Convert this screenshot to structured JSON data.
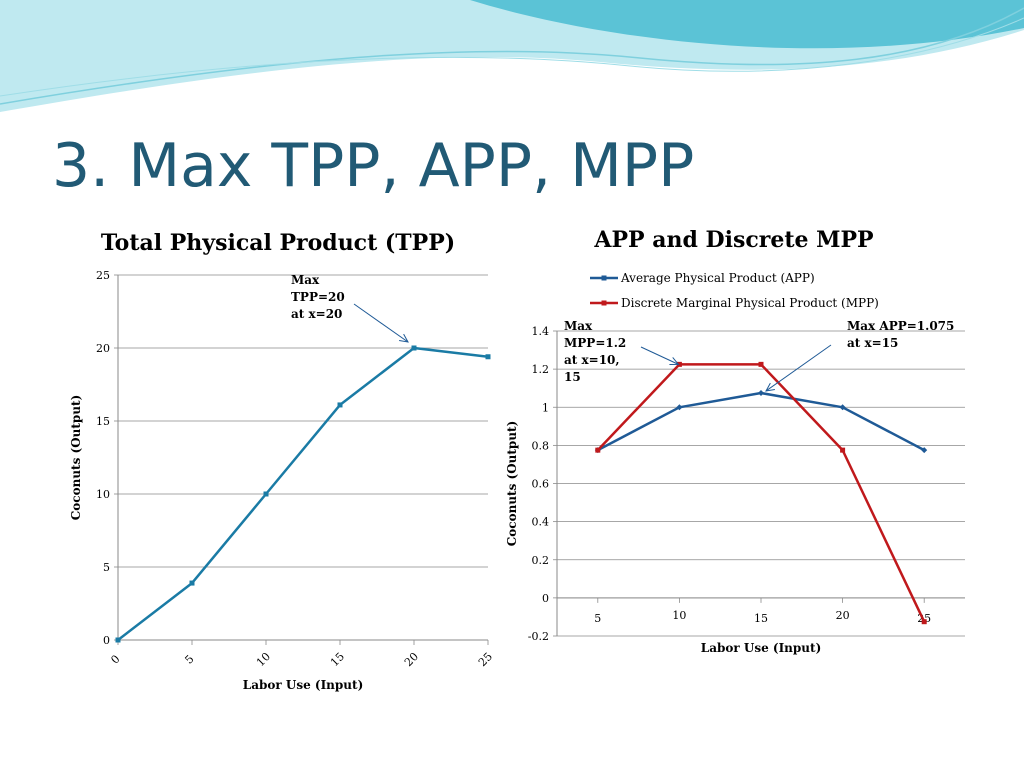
{
  "slide": {
    "title": "3. Max TPP, APP, MPP"
  },
  "theme": {
    "title_color": "#215a75",
    "wave_light": "#bfe9f0",
    "wave_dark": "#5bc3d6"
  },
  "chart_data": [
    {
      "type": "line",
      "title": "Total Physical Product (TPP)",
      "xlabel": "Labor Use (Input)",
      "ylabel": "Coconuts (Output)",
      "categories": [
        "0",
        "5",
        "10",
        "15",
        "20",
        "25"
      ],
      "ylim": [
        0,
        25
      ],
      "yticks": [
        0,
        5,
        10,
        15,
        20,
        25
      ],
      "grid": true,
      "series": [
        {
          "color": "#1a7ba5",
          "values": [
            0,
            3.9,
            10,
            16.1,
            20,
            19.4
          ]
        }
      ],
      "annotations": [
        {
          "lines": [
            "Max",
            "TPP=20",
            "at x=20"
          ],
          "target_category": "20",
          "target_value": 20
        }
      ]
    },
    {
      "type": "line",
      "title": "APP and Discrete MPP",
      "xlabel": "Labor Use (Input)",
      "ylabel": "Coconuts (Output)",
      "categories": [
        "5",
        "10",
        "15",
        "20",
        "25"
      ],
      "ylim": [
        -0.2,
        1.4
      ],
      "yticks": [
        "-0.2",
        "0",
        "0.2",
        "0.4",
        "0.6",
        "0.8",
        "1",
        "1.2",
        "1.4"
      ],
      "grid": true,
      "legend": "top",
      "series": [
        {
          "name": "Average Physical Product (APP)",
          "color": "#1f5a96",
          "values": [
            0.775,
            1.0,
            1.075,
            1.0,
            0.775
          ]
        },
        {
          "name": "Discrete Marginal Physical Product (MPP)",
          "color": "#c0191c",
          "values": [
            0.775,
            1.225,
            1.225,
            0.775,
            -0.125
          ]
        }
      ],
      "annotations": [
        {
          "lines": [
            "Max",
            "MPP=1.2",
            "at x=10,",
            "15"
          ],
          "target_category": "10",
          "target_value": 1.225
        },
        {
          "lines": [
            "Max APP=1.075",
            "at x=15"
          ],
          "target_category": "15",
          "target_value": 1.075
        }
      ]
    }
  ]
}
